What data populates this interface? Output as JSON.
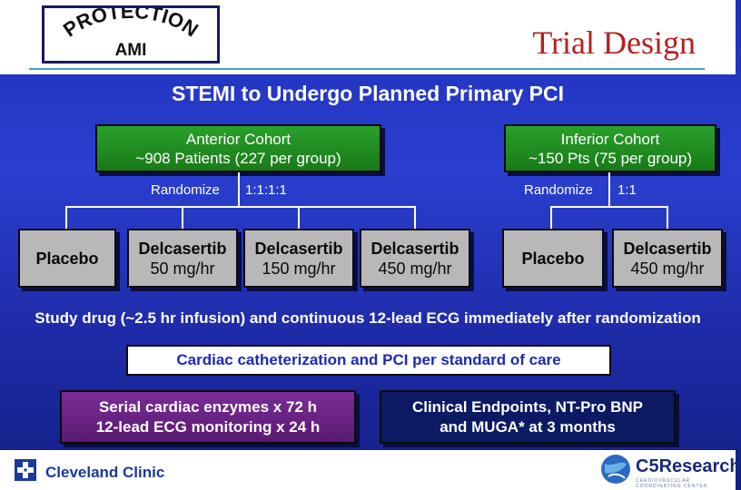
{
  "logo": {
    "word_top": "PROTECTION",
    "word_bottom": "AMI"
  },
  "title": "Trial Design",
  "subtitle": "STEMI to Undergo Planned Primary PCI",
  "anterior": {
    "line1": "Anterior Cohort",
    "line2": "~908 Patients  (227 per group)",
    "randomize_label": "Randomize",
    "ratio": "1:1:1:1",
    "arms": [
      {
        "line1": "Placebo",
        "line2": ""
      },
      {
        "line1": "Delcasertib",
        "line2": "50 mg/hr"
      },
      {
        "line1": "Delcasertib",
        "line2": "150 mg/hr"
      },
      {
        "line1": "Delcasertib",
        "line2": "450 mg/hr"
      }
    ]
  },
  "inferior": {
    "line1": "Inferior Cohort",
    "line2": "~150 Pts (75 per group)",
    "randomize_label": "Randomize",
    "ratio": "1:1",
    "arms": [
      {
        "line1": "Placebo",
        "line2": ""
      },
      {
        "line1": "Delcasertib",
        "line2": "450 mg/hr"
      }
    ]
  },
  "study_drug_text": "Study drug (~2.5 hr infusion) and continuous 12-lead ECG immediately after randomization",
  "catheterization_text": "Cardiac catheterization and PCI per standard of care",
  "monitoring": {
    "line1": "Serial cardiac enzymes x 72 h",
    "line2": "12-lead ECG monitoring x 24 h"
  },
  "endpoints": {
    "line1": "Clinical Endpoints, NT-Pro BNP",
    "line2": "and MUGA* at 3 months"
  },
  "footer": {
    "left_logo_text": "Cleveland Clinic",
    "right_logo_text": "C5Research",
    "right_logo_tagline": "CARDIOVASCULAR COORDINATING CENTER"
  },
  "colors": {
    "background": "#2a3fd0",
    "title_red": "#b52020",
    "cohort_green": "#1f8f1f",
    "arm_gray": "#b8b8b8",
    "monitor_purple": "#6a2185",
    "endpoint_navy": "#0b1a63"
  }
}
